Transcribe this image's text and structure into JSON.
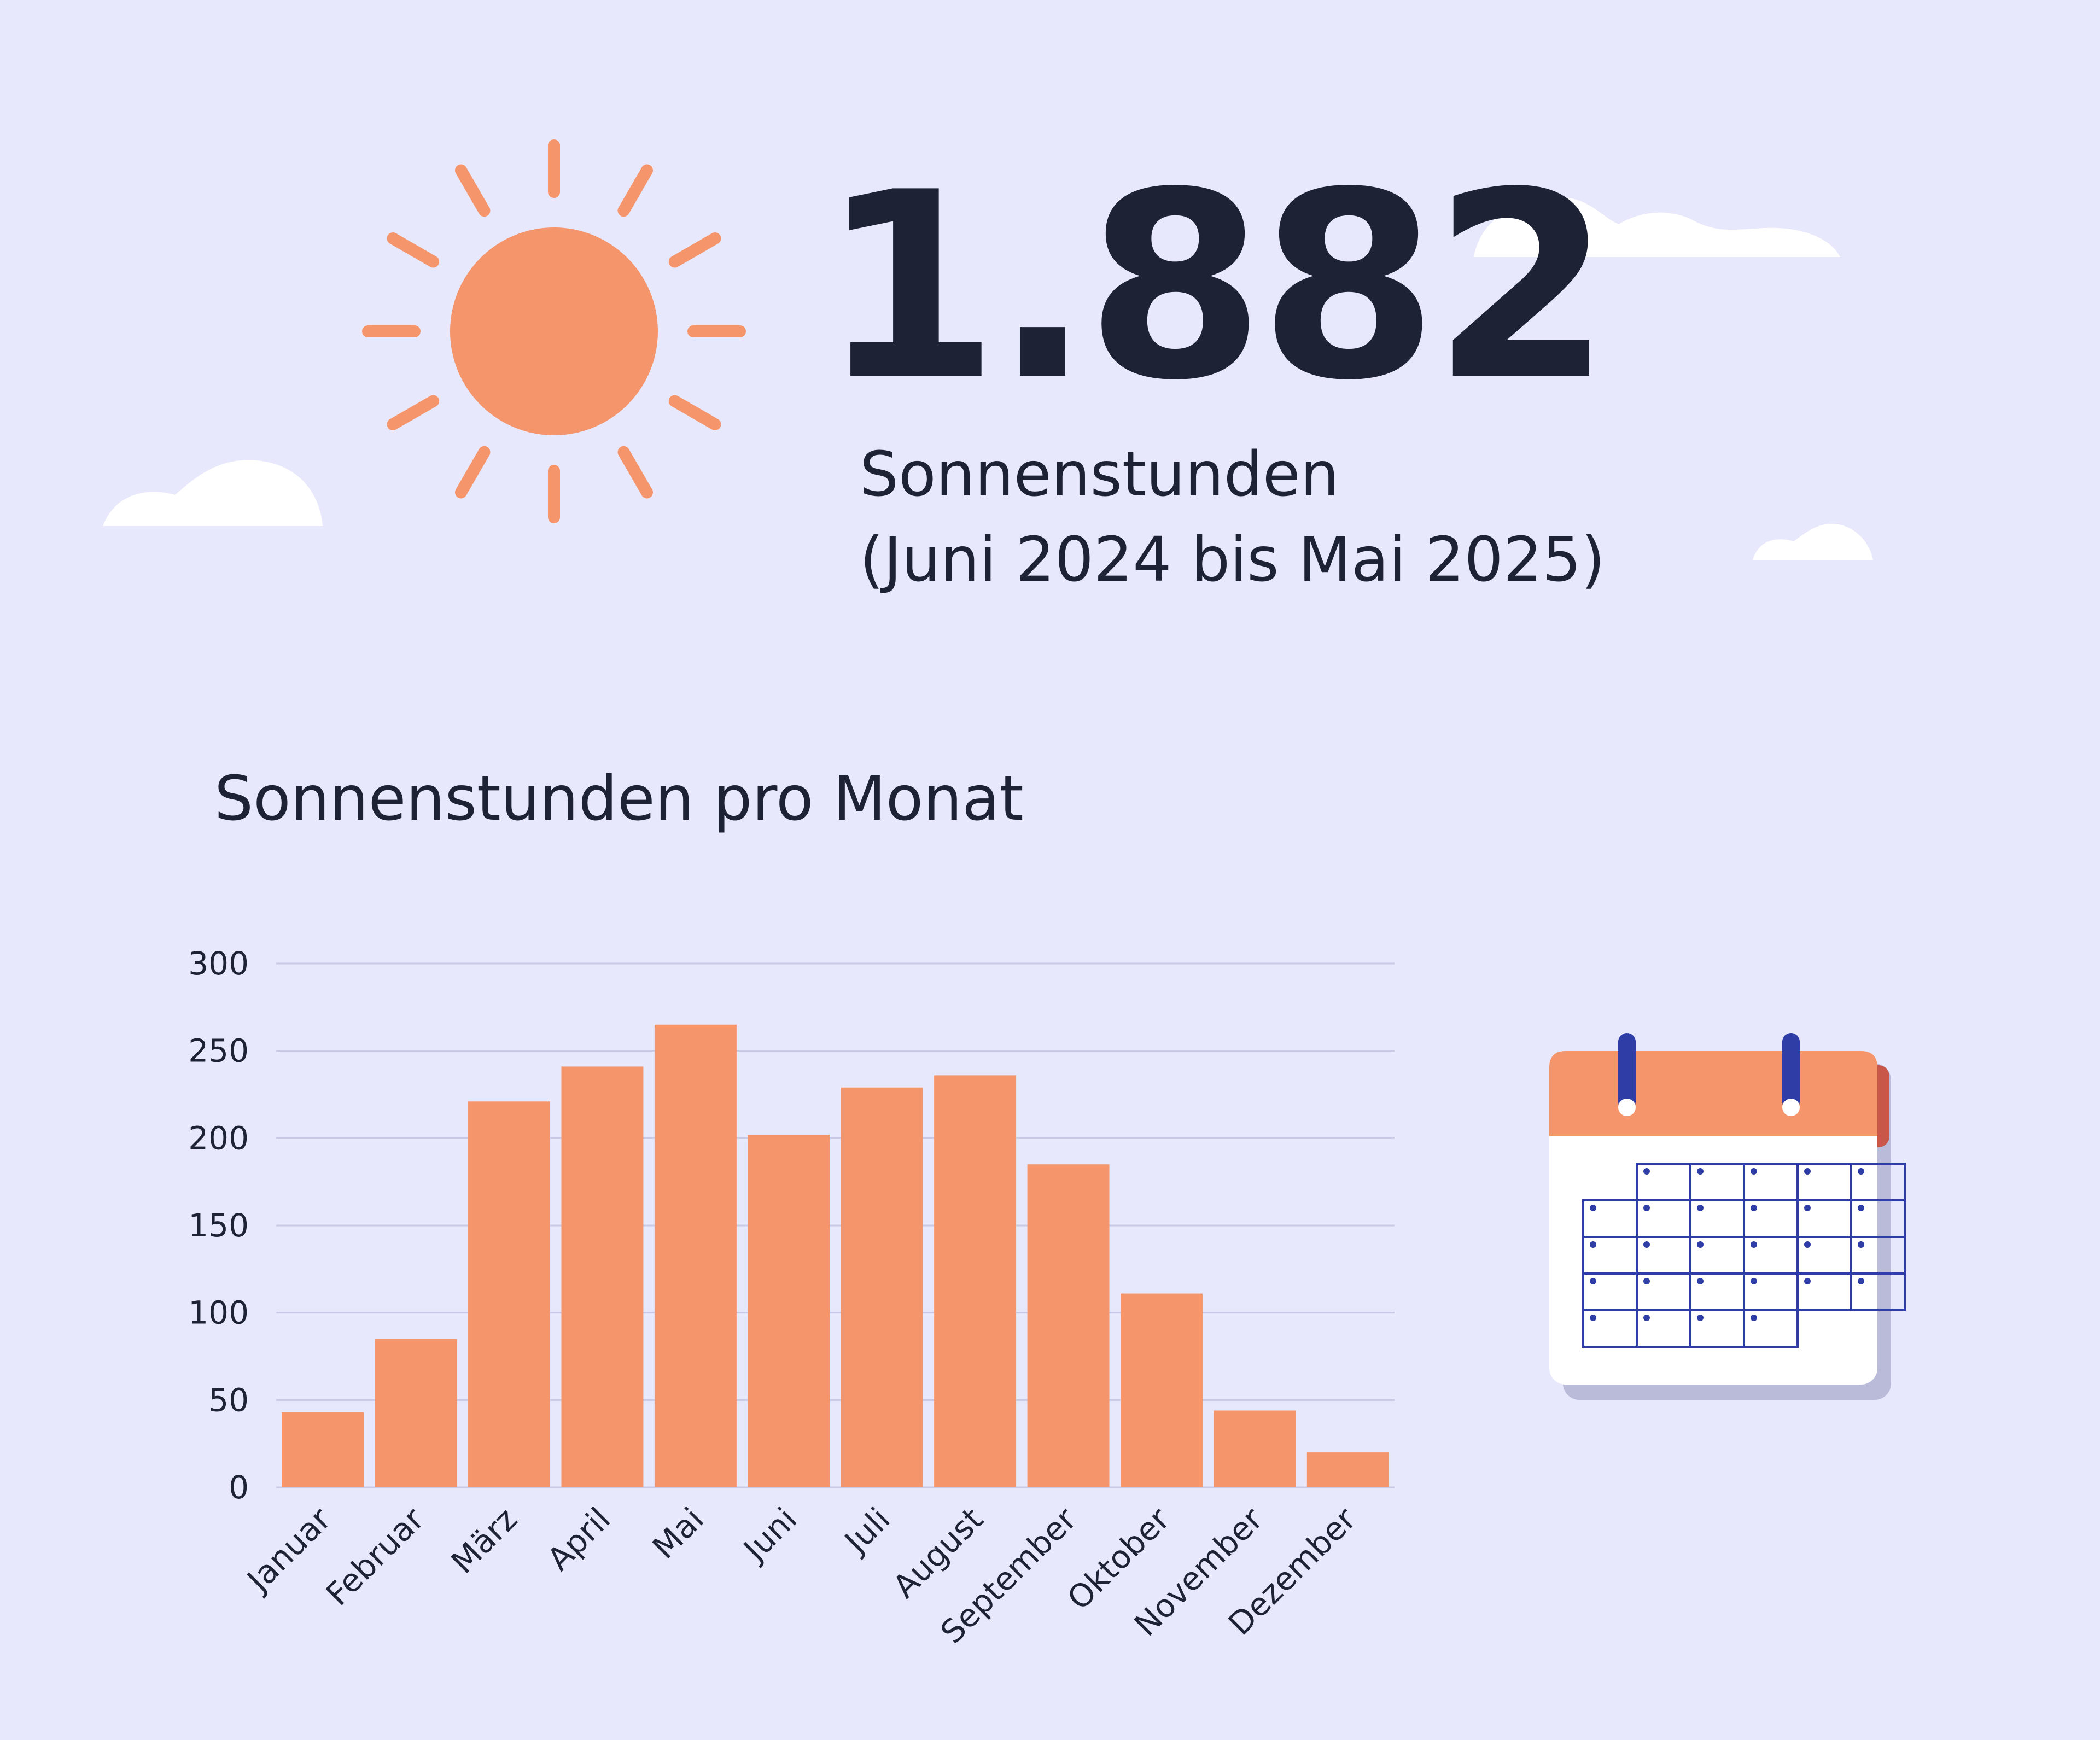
{
  "hero": {
    "value": "1.882",
    "label": "Sonnenstunden",
    "period": "(Juni 2024 bis Mai 2025)"
  },
  "icons": {
    "sun": "sun-icon",
    "clouds": "cloud-icon",
    "calendar": "calendar-icon"
  },
  "colors": {
    "background": "#e8e8fc",
    "bar": "#f5956c",
    "text": "#1e2235",
    "calendar_ring": "#2e3ea6"
  },
  "chart_data": {
    "type": "bar",
    "title": "Sonnenstunden pro Monat",
    "categories": [
      "Januar",
      "Februar",
      "März",
      "April",
      "Mai",
      "Juni",
      "Juli",
      "August",
      "September",
      "Oktober",
      "November",
      "Dezember"
    ],
    "values": [
      43,
      85,
      221,
      241,
      265,
      202,
      229,
      236,
      185,
      111,
      44,
      20
    ],
    "yticks": [
      0,
      50,
      100,
      150,
      200,
      250,
      300
    ],
    "ylim": [
      0,
      300
    ],
    "grid": true,
    "legend": "none"
  }
}
